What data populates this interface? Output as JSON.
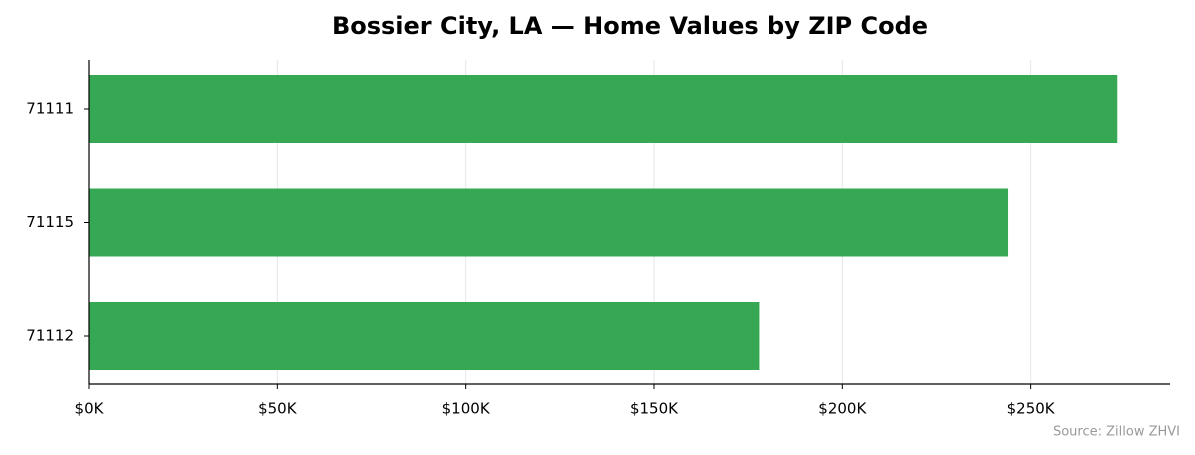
{
  "chart_data": {
    "type": "barh",
    "title": "Bossier City, LA — Home Values by ZIP Code",
    "categories": [
      "71111",
      "71115",
      "71112"
    ],
    "values": [
      273000,
      244000,
      178000
    ],
    "color": "#36a854",
    "xlim": [
      0,
      287000
    ],
    "xticks": [
      {
        "value": 0,
        "label": "$0K"
      },
      {
        "value": 50000,
        "label": "$50K"
      },
      {
        "value": 100000,
        "label": "$100K"
      },
      {
        "value": 150000,
        "label": "$150K"
      },
      {
        "value": 200000,
        "label": "$200K"
      },
      {
        "value": 250000,
        "label": "$250K"
      }
    ],
    "grid": true,
    "source": "Source: Zillow ZHVI"
  }
}
